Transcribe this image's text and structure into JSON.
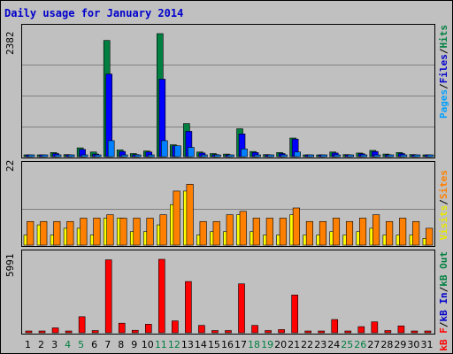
{
  "title": "Daily usage for January 2014",
  "colors": {
    "pages": "#0080ff",
    "files": "#0000ff",
    "hits": "#008040",
    "sites": "#ff8000",
    "visits": "#ffff00",
    "kb": "#ff0000",
    "kbIn": "#0000ff",
    "kbOut": "#008040",
    "weekend": "#008040",
    "weekday": "#000000"
  },
  "legend": {
    "top": [
      {
        "text": "Pages",
        "color": "#00a0ff"
      },
      {
        "text": "/",
        "color": "#000000"
      },
      {
        "text": "Files",
        "color": "#0000cc"
      },
      {
        "text": "/",
        "color": "#000000"
      },
      {
        "text": "Hits",
        "color": "#008040"
      }
    ],
    "mid": [
      {
        "text": "Visits",
        "color": "#e8e800"
      },
      {
        "text": "/",
        "color": "#000000"
      },
      {
        "text": "Sites",
        "color": "#ff8000"
      }
    ],
    "bot": [
      {
        "text": "kB F",
        "color": "#ff0000"
      },
      {
        "text": "/",
        "color": "#000000"
      },
      {
        "text": "kB In",
        "color": "#0000cc"
      },
      {
        "text": "/",
        "color": "#000000"
      },
      {
        "text": "kB Out",
        "color": "#008040"
      }
    ]
  },
  "chart_data": [
    {
      "type": "bar",
      "name": "hits-files-pages",
      "ymax_label": "2382",
      "ylim": [
        0,
        2382
      ],
      "x": [
        1,
        2,
        3,
        4,
        5,
        6,
        7,
        8,
        9,
        10,
        11,
        12,
        13,
        14,
        15,
        16,
        17,
        18,
        19,
        20,
        21,
        22,
        23,
        24,
        25,
        26,
        27,
        28,
        29,
        30,
        31
      ],
      "series": [
        {
          "name": "Hits",
          "values": [
            30,
            25,
            80,
            40,
            170,
            90,
            2250,
            130,
            60,
            110,
            2382,
            230,
            640,
            90,
            60,
            50,
            540,
            100,
            40,
            80,
            360,
            30,
            30,
            90,
            40,
            70,
            120,
            50,
            80,
            40,
            30
          ]
        },
        {
          "name": "Files",
          "values": [
            20,
            15,
            60,
            25,
            140,
            50,
            1600,
            100,
            40,
            90,
            1500,
            210,
            490,
            70,
            40,
            30,
            440,
            80,
            25,
            60,
            340,
            20,
            20,
            70,
            30,
            55,
            100,
            35,
            60,
            30,
            20
          ]
        },
        {
          "name": "Pages",
          "values": [
            5,
            5,
            15,
            5,
            30,
            10,
            310,
            20,
            10,
            20,
            310,
            210,
            180,
            20,
            10,
            5,
            150,
            20,
            5,
            10,
            90,
            5,
            5,
            20,
            10,
            15,
            20,
            10,
            20,
            10,
            5
          ]
        }
      ]
    },
    {
      "type": "bar",
      "name": "sites-visits",
      "ymax_label": "22",
      "ylim": [
        0,
        22
      ],
      "x": [
        1,
        2,
        3,
        4,
        5,
        6,
        7,
        8,
        9,
        10,
        11,
        12,
        13,
        14,
        15,
        16,
        17,
        18,
        19,
        20,
        21,
        22,
        23,
        24,
        25,
        26,
        27,
        28,
        29,
        30,
        31
      ],
      "series": [
        {
          "name": "Visits",
          "values": [
            3,
            6,
            3,
            5,
            5,
            3,
            8,
            8,
            4,
            4,
            6,
            12,
            16,
            3,
            4,
            4,
            9,
            4,
            3,
            3,
            9,
            3,
            3,
            4,
            3,
            4,
            5,
            3,
            3,
            3,
            2
          ]
        },
        {
          "name": "Sites",
          "values": [
            7,
            7,
            7,
            7,
            8,
            8,
            9,
            8,
            8,
            8,
            9,
            16,
            18,
            7,
            7,
            9,
            10,
            8,
            8,
            8,
            11,
            7,
            7,
            8,
            7,
            8,
            9,
            7,
            8,
            7,
            5
          ]
        }
      ]
    },
    {
      "type": "bar",
      "name": "kbytes",
      "ymax_label": "5991",
      "ylim": [
        0,
        5991
      ],
      "x": [
        1,
        2,
        3,
        4,
        5,
        6,
        7,
        8,
        9,
        10,
        11,
        12,
        13,
        14,
        15,
        16,
        17,
        18,
        19,
        20,
        21,
        22,
        23,
        24,
        25,
        26,
        27,
        28,
        29,
        30,
        31
      ],
      "series": [
        {
          "name": "kB F",
          "values": [
            90,
            90,
            400,
            90,
            1310,
            180,
            5950,
            780,
            200,
            700,
            5991,
            970,
            4180,
            600,
            180,
            180,
            3990,
            600,
            180,
            260,
            3080,
            90,
            90,
            1080,
            90,
            500,
            890,
            180,
            560,
            90,
            90
          ]
        }
      ]
    }
  ],
  "days": [
    {
      "label": "1",
      "weekend": false
    },
    {
      "label": "2",
      "weekend": false
    },
    {
      "label": "3",
      "weekend": false
    },
    {
      "label": "4",
      "weekend": true
    },
    {
      "label": "5",
      "weekend": true
    },
    {
      "label": "6",
      "weekend": false
    },
    {
      "label": "7",
      "weekend": false
    },
    {
      "label": "8",
      "weekend": false
    },
    {
      "label": "9",
      "weekend": false
    },
    {
      "label": "10",
      "weekend": false
    },
    {
      "label": "11",
      "weekend": true
    },
    {
      "label": "12",
      "weekend": true
    },
    {
      "label": "13",
      "weekend": false
    },
    {
      "label": "14",
      "weekend": false
    },
    {
      "label": "15",
      "weekend": false
    },
    {
      "label": "16",
      "weekend": false
    },
    {
      "label": "17",
      "weekend": false
    },
    {
      "label": "18",
      "weekend": true
    },
    {
      "label": "19",
      "weekend": true
    },
    {
      "label": "20",
      "weekend": false
    },
    {
      "label": "21",
      "weekend": false
    },
    {
      "label": "22",
      "weekend": false
    },
    {
      "label": "23",
      "weekend": false
    },
    {
      "label": "24",
      "weekend": false
    },
    {
      "label": "25",
      "weekend": true
    },
    {
      "label": "26",
      "weekend": true
    },
    {
      "label": "27",
      "weekend": false
    },
    {
      "label": "28",
      "weekend": false
    },
    {
      "label": "29",
      "weekend": false
    },
    {
      "label": "30",
      "weekend": false
    },
    {
      "label": "31",
      "weekend": false
    }
  ]
}
